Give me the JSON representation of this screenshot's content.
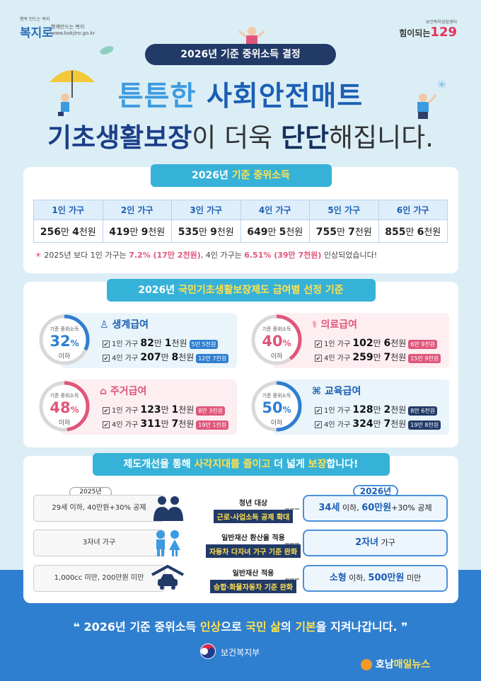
{
  "header": {
    "left_logo": {
      "tiny": "행복 만드는 복지",
      "brand": "복지로",
      "tagline": "함께만드는 복지",
      "url": "www.bokjiro.go.kr"
    },
    "right_logo": {
      "tiny": "보건복지상담센터",
      "text": "힘이되는",
      "number": "129"
    },
    "pill": "2026년 기준 중위소득 결정"
  },
  "headline": {
    "line1_a": "튼튼한 ",
    "line1_b": "사회안전매트",
    "line2_a": "기초생활보장",
    "line2_b": "이 더욱 ",
    "line2_c": "단단",
    "line2_d": "해집니다."
  },
  "income": {
    "title_a": "2026년 ",
    "title_b": "기준 중위소득",
    "headers": [
      "1인 가구",
      "2인 가구",
      "3인 가구",
      "4인 가구",
      "5인 가구",
      "6인 가구"
    ],
    "values": [
      {
        "man": "256",
        "cheon": "4"
      },
      {
        "man": "419",
        "cheon": "9"
      },
      {
        "man": "535",
        "cheon": "9"
      },
      {
        "man": "649",
        "cheon": "5"
      },
      {
        "man": "755",
        "cheon": "7"
      },
      {
        "man": "855",
        "cheon": "6"
      }
    ],
    "unit_man": "만 ",
    "unit_cheon": "천원",
    "note": {
      "a": "2025년 보다 1인 가구는 ",
      "b": "7.2% (17만 2천원)",
      "c": ", 4인 가구는 ",
      "d": "6.51% (39만 7천원)",
      "e": " 인상되었습니다!"
    }
  },
  "benefits": {
    "title_a": "2026년 ",
    "title_b": "국민기초생활보장제도 급여별 선정 기준",
    "gauge_label": "기준 중위소득",
    "gauge_sub": "이하",
    "items": [
      {
        "name": "생계급여",
        "pct": "32",
        "pct_value": 32,
        "color": "#2f7fd0",
        "r1": {
          "label": "1인 가구",
          "man": "82",
          "cheon": "1",
          "badge": "5만 5천원"
        },
        "r2": {
          "label": "4인 가구",
          "man": "207",
          "cheon": "8",
          "badge": "12만 7천원"
        }
      },
      {
        "name": "의료급여",
        "pct": "40",
        "pct_value": 40,
        "color": "#e0567a",
        "r1": {
          "label": "1인 가구",
          "man": "102",
          "cheon": "6",
          "badge": "6만 9천원"
        },
        "r2": {
          "label": "4인 가구",
          "man": "259",
          "cheon": "7",
          "badge": "15만 9천원"
        }
      },
      {
        "name": "주거급여",
        "pct": "48",
        "pct_value": 48,
        "color": "#e0567a",
        "r1": {
          "label": "1인 가구",
          "man": "123",
          "cheon": "1",
          "badge": "8만 3천원"
        },
        "r2": {
          "label": "4인 가구",
          "man": "311",
          "cheon": "7",
          "badge": "19만 1천원"
        }
      },
      {
        "name": "교육급여",
        "pct": "50",
        "pct_value": 50,
        "color": "#2f7fd0",
        "r1": {
          "label": "1인 가구",
          "man": "128",
          "cheon": "2",
          "badge": "8만 6천원"
        },
        "r2": {
          "label": "4인 가구",
          "man": "324",
          "cheon": "7",
          "badge": "19만 8천원"
        }
      }
    ],
    "pct_unit": "%"
  },
  "reform": {
    "title_a": "제도개선을 통해 ",
    "title_b": "사각지대를 줄이고",
    "title_c": " 더 넓게 ",
    "title_d": "보장",
    "title_e": "합니다!",
    "year_before": "2025년",
    "year_after": "2026년",
    "rows": [
      {
        "before": "29세 이하, 40만원+30% 공제",
        "m1": "청년 대상",
        "m2": "근로·사업소득 공제 확대",
        "after_a": "34세",
        "after_b": " 이하, ",
        "after_c": "60만원",
        "after_d": "+30% 공제"
      },
      {
        "before": "3자녀 가구",
        "m1": "일반재산 환산율 적용",
        "m2": "자동차 다자녀 가구 기준 완화",
        "after_a": "2자녀",
        "after_b": " 가구",
        "after_c": "",
        "after_d": ""
      },
      {
        "before": "1,000cc 미만, 200만원 미만",
        "m1": "일반재산 적용",
        "m2": "승합·화물자동차 기준 완화",
        "after_a": "소형",
        "after_b": " 이하, ",
        "after_c": "500만원",
        "after_d": " 미만"
      }
    ]
  },
  "footer": {
    "a": "2026년 기준 중위소득 ",
    "b": "인상",
    "c": "으로 ",
    "d": "국민 삶",
    "e": "의 ",
    "f": "기본",
    "g": "을 지켜나갑니다.",
    "ministry": "보건복지부",
    "news_a": "호남",
    "news_b": "매일뉴스"
  }
}
